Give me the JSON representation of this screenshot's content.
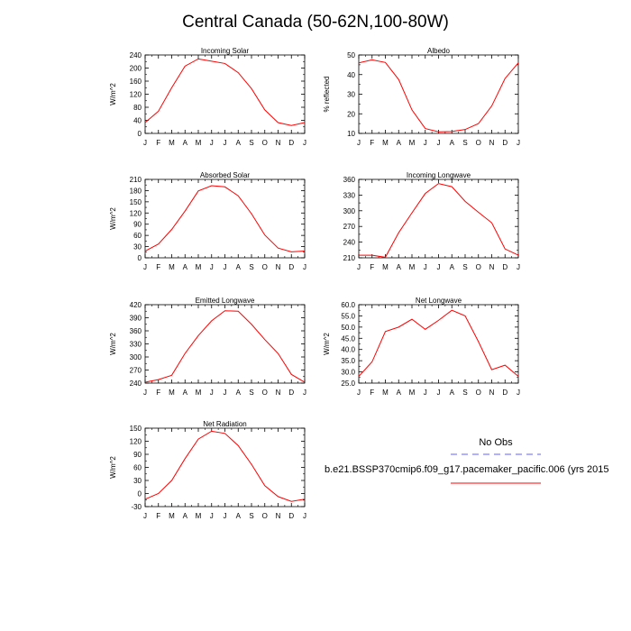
{
  "figure": {
    "title": "Central Canada (50-62N,100-80W)"
  },
  "legend": {
    "obs_label": "No Obs",
    "obs_color": "#8080ff",
    "model_label": "b.e21.BSSP370cmip6.f09_g17.pacemaker_pacific.006 (yrs 2015",
    "model_color": "#ff0000"
  },
  "chart_data": [
    {
      "type": "line",
      "title": "Incoming Solar",
      "ylabel": "W/m^2",
      "categories": [
        "J",
        "F",
        "M",
        "A",
        "M",
        "J",
        "J",
        "A",
        "S",
        "O",
        "N",
        "D",
        "J"
      ],
      "ylim": [
        0,
        240
      ],
      "yticks": [
        0,
        40,
        80,
        120,
        160,
        200,
        240
      ],
      "ytick_labels": [
        "0",
        "40",
        "80",
        "120",
        "160",
        "200",
        "240"
      ],
      "series": [
        {
          "values": [
            33,
            68,
            140,
            206,
            228,
            221,
            214,
            186,
            137,
            72,
            33,
            24,
            33
          ],
          "color": "#ff0000"
        }
      ]
    },
    {
      "type": "line",
      "title": "Albedo",
      "ylabel": "% reflected",
      "categories": [
        "J",
        "F",
        "M",
        "A",
        "M",
        "J",
        "J",
        "A",
        "S",
        "O",
        "N",
        "D",
        "J"
      ],
      "ylim": [
        10,
        50
      ],
      "yticks": [
        10,
        20,
        30,
        40,
        50
      ],
      "ytick_labels": [
        "10",
        "20",
        "30",
        "40",
        "50"
      ],
      "series": [
        {
          "values": [
            46,
            47.5,
            46.2,
            37.5,
            22,
            12.5,
            10.8,
            11,
            12,
            15,
            24,
            38,
            46
          ],
          "color": "#ff0000"
        }
      ]
    },
    {
      "type": "line",
      "title": "Absorbed Solar",
      "ylabel": "W/m^2",
      "categories": [
        "J",
        "F",
        "M",
        "A",
        "M",
        "J",
        "J",
        "A",
        "S",
        "O",
        "N",
        "D",
        "J"
      ],
      "ylim": [
        0,
        210
      ],
      "yticks": [
        0,
        30,
        60,
        90,
        120,
        150,
        180,
        210
      ],
      "ytick_labels": [
        "0",
        "30",
        "60",
        "90",
        "120",
        "150",
        "180",
        "210"
      ],
      "series": [
        {
          "values": [
            18,
            37,
            76,
            125,
            179,
            193,
            190,
            166,
            118,
            61,
            26,
            16,
            18
          ],
          "color": "#ff0000"
        }
      ]
    },
    {
      "type": "line",
      "title": "Incoming Longwave",
      "ylabel": "",
      "categories": [
        "J",
        "F",
        "M",
        "A",
        "M",
        "J",
        "J",
        "A",
        "S",
        "O",
        "N",
        "D",
        "J"
      ],
      "ylim": [
        210,
        360
      ],
      "yticks": [
        210,
        240,
        270,
        300,
        330,
        360
      ],
      "ytick_labels": [
        "210",
        "240",
        "270",
        "300",
        "330",
        "360"
      ],
      "series": [
        {
          "values": [
            215,
            215,
            211,
            258,
            296,
            333,
            352,
            346,
            318,
            297,
            277,
            227,
            215
          ],
          "color": "#ff0000"
        }
      ]
    },
    {
      "type": "line",
      "title": "Emitted Longwave",
      "ylabel": "W/m^2",
      "categories": [
        "J",
        "F",
        "M",
        "A",
        "M",
        "J",
        "J",
        "A",
        "S",
        "O",
        "N",
        "D",
        "J"
      ],
      "ylim": [
        240,
        420
      ],
      "yticks": [
        240,
        270,
        300,
        330,
        360,
        390,
        420
      ],
      "ytick_labels": [
        "240",
        "270",
        "300",
        "330",
        "360",
        "390",
        "420"
      ],
      "series": [
        {
          "values": [
            242,
            248,
            258,
            308,
            349,
            383,
            406,
            405,
            375,
            340,
            308,
            260,
            242
          ],
          "color": "#ff0000"
        }
      ]
    },
    {
      "type": "line",
      "title": "Net Longwave",
      "ylabel": "W/m^2",
      "categories": [
        "J",
        "F",
        "M",
        "A",
        "M",
        "J",
        "J",
        "A",
        "S",
        "O",
        "N",
        "D",
        "J"
      ],
      "ylim": [
        25,
        60
      ],
      "yticks": [
        25,
        30,
        35,
        40,
        45,
        50,
        55,
        60
      ],
      "ytick_labels": [
        "25.0",
        "30.0",
        "35.0",
        "40.0",
        "45.0",
        "50.0",
        "55.0",
        "60.0"
      ],
      "series": [
        {
          "values": [
            28,
            34.5,
            48,
            50,
            53.5,
            49,
            53,
            57.5,
            55,
            43.5,
            31,
            33,
            28
          ],
          "color": "#ff0000"
        }
      ]
    },
    {
      "type": "line",
      "title": "Net Radiation",
      "ylabel": "W/m^2",
      "categories": [
        "J",
        "F",
        "M",
        "A",
        "M",
        "J",
        "J",
        "A",
        "S",
        "O",
        "N",
        "D",
        "J"
      ],
      "ylim": [
        -30,
        150
      ],
      "yticks": [
        -30,
        0,
        30,
        60,
        90,
        120,
        150
      ],
      "ytick_labels": [
        "-30",
        "0",
        "30",
        "60",
        "90",
        "120",
        "150"
      ],
      "series": [
        {
          "values": [
            -13,
            0,
            30,
            80,
            125,
            143,
            138,
            110,
            67,
            18,
            -7,
            -18,
            -13
          ],
          "color": "#ff0000"
        }
      ]
    }
  ]
}
